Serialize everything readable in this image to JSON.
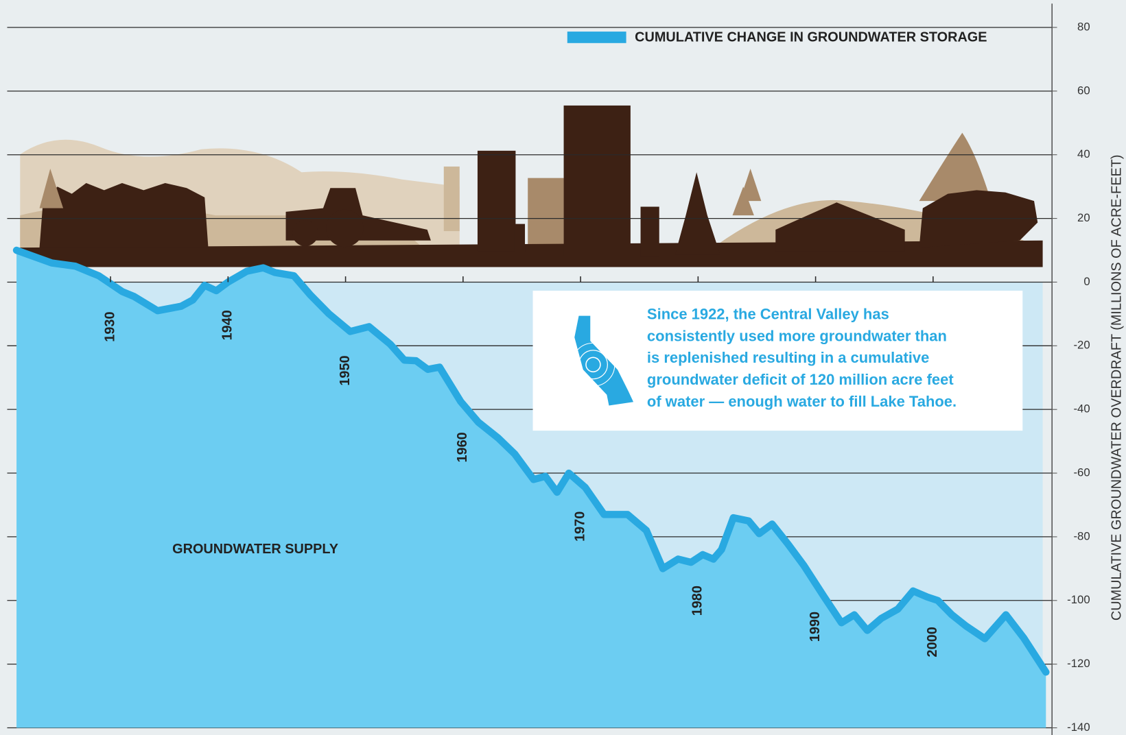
{
  "chart_data": {
    "type": "line",
    "y_axis_label": "CUMULATIVE GROUNDWATER OVERDRAFT (MILLIONS OF ACRE-FEET)",
    "annotations": {
      "area_label": "GROUNDWATER SUPPLY",
      "callout": [
        "Since 1922, the Central Valley has",
        "consistently used more groundwater than",
        "is replenished resulting in a cumulative",
        "groundwater deficit of 120 million acre feet",
        "of water — enough water to fill Lake Tahoe."
      ]
    },
    "x": [
      1922.0,
      1925.0,
      1927.0,
      1929.0,
      1931.0,
      1932.0,
      1934.0,
      1936.0,
      1937.0,
      1938.0,
      1939.0,
      1940.0,
      1941.6,
      1943.0,
      1944.0,
      1945.6,
      1947.0,
      1948.6,
      1950.4,
      1952.0,
      1953.8,
      1955.0,
      1956.0,
      1957.0,
      1958.0,
      1959.8,
      1961.3,
      1963.0,
      1964.4,
      1966.0,
      1967.0,
      1968.0,
      1969.0,
      1970.4,
      1972.0,
      1974.0,
      1975.6,
      1977.0,
      1978.3,
      1979.4,
      1980.4,
      1981.3,
      1982.0,
      1983.0,
      1984.3,
      1985.2,
      1986.3,
      1987.7,
      1989.0,
      1990.7,
      1992.2,
      1993.3,
      1994.4,
      1995.6,
      1997.0,
      1998.3,
      1999.5,
      2000.4,
      2001.6,
      2002.8,
      2004.4,
      2006.2,
      2007.7,
      2009.6
    ],
    "series": [
      {
        "name": "CUMULATIVE CHANGE IN GROUNDWATER STORAGE",
        "color": "#29a9e1",
        "values": [
          10,
          6,
          5,
          2,
          -3,
          -4.5,
          -9,
          -7.6,
          -5.6,
          -1,
          -2.7,
          0,
          3.4,
          4.5,
          3,
          2,
          -4,
          -10,
          -15.5,
          -14,
          -19.5,
          -24.5,
          -24.7,
          -27.4,
          -26.7,
          -37.5,
          -44,
          -49,
          -54,
          -62,
          -61,
          -66,
          -60,
          -64.5,
          -73,
          -73,
          -78,
          -90,
          -87,
          -88,
          -85.6,
          -87,
          -84,
          -74,
          -75,
          -79,
          -76,
          -82.5,
          -89,
          -98.7,
          -107,
          -104.5,
          -109.4,
          -105.6,
          -102.7,
          -97,
          -98.9,
          -100,
          -104.5,
          -108,
          -112,
          -104.5,
          -111.7,
          -122.5
        ]
      }
    ],
    "xlim": [
      1922,
      2010
    ],
    "xticks": [
      1930,
      1940,
      1950,
      1960,
      1970,
      1980,
      1990,
      2000
    ],
    "ylim": [
      -140,
      85
    ],
    "yticks": [
      80,
      60,
      40,
      20,
      0,
      -20,
      -40,
      -60,
      -80,
      -100,
      -120,
      -140
    ],
    "grid": true,
    "fill_color": "#6ccdf2"
  }
}
